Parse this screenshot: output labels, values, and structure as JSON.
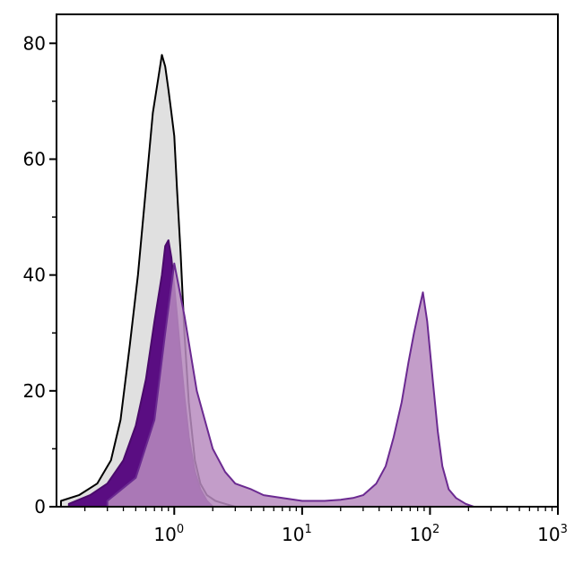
{
  "chart_data": {
    "type": "area",
    "x_scale": "log",
    "xlim": [
      0.12,
      1000
    ],
    "ylim": [
      0,
      85
    ],
    "x_ticks": [
      {
        "value": 1,
        "base": "10",
        "exp": "0"
      },
      {
        "value": 10,
        "base": "10",
        "exp": "1"
      },
      {
        "value": 100,
        "base": "10",
        "exp": "2"
      },
      {
        "value": 1000,
        "base": "10",
        "exp": "3"
      }
    ],
    "y_ticks": [
      {
        "value": 0,
        "label": "0"
      },
      {
        "value": 20,
        "label": "20"
      },
      {
        "value": 40,
        "label": "40"
      },
      {
        "value": 60,
        "label": "60"
      },
      {
        "value": 80,
        "label": "80"
      }
    ],
    "grid": false,
    "legend": "none",
    "series": [
      {
        "id": "unstained",
        "fill": "#e0e0e0",
        "stroke": "#000000",
        "x": [
          0.13,
          0.18,
          0.25,
          0.32,
          0.38,
          0.45,
          0.52,
          0.6,
          0.68,
          0.75,
          0.8,
          0.85,
          0.9,
          0.95,
          1.0,
          1.05,
          1.12,
          1.2,
          1.3,
          1.45,
          1.6,
          1.8,
          2.1,
          2.5,
          3.0
        ],
        "y": [
          1,
          2,
          4,
          8,
          15,
          28,
          40,
          55,
          68,
          74,
          78,
          76,
          72,
          68,
          64,
          55,
          44,
          30,
          18,
          8,
          4,
          2,
          1,
          0.5,
          0
        ]
      },
      {
        "id": "isotype",
        "fill": "#5a0d82",
        "stroke": "#4a0a6b",
        "x": [
          0.15,
          0.22,
          0.3,
          0.4,
          0.5,
          0.6,
          0.7,
          0.8,
          0.85,
          0.9,
          0.95,
          1.0,
          1.05,
          1.12,
          1.2,
          1.3,
          1.45,
          1.6,
          1.8,
          2.0
        ],
        "y": [
          0.5,
          2,
          4,
          8,
          14,
          22,
          32,
          40,
          45,
          46,
          43,
          38,
          33,
          26,
          19,
          12,
          6,
          3,
          1,
          0
        ]
      },
      {
        "id": "stained",
        "fill": "#b98cbf",
        "stroke": "#6b2a91",
        "x": [
          0.3,
          0.5,
          0.7,
          0.85,
          1.0,
          1.2,
          1.5,
          2.0,
          2.5,
          3.0,
          4.0,
          5.0,
          7.0,
          10.0,
          15.0,
          20.0,
          25.0,
          30.0,
          38.0,
          45.0,
          52.0,
          60.0,
          68.0,
          75.0,
          82.0,
          88.0,
          95.0,
          105.0,
          115.0,
          125.0,
          140.0,
          160.0,
          190.0,
          220.0
        ],
        "y": [
          1,
          5,
          15,
          30,
          42,
          33,
          20,
          10,
          6,
          4,
          3,
          2,
          1.5,
          1,
          1,
          1.2,
          1.5,
          2,
          4,
          7,
          12,
          18,
          25,
          30,
          34,
          37,
          32,
          22,
          13,
          7,
          3,
          1.5,
          0.5,
          0
        ]
      }
    ]
  }
}
